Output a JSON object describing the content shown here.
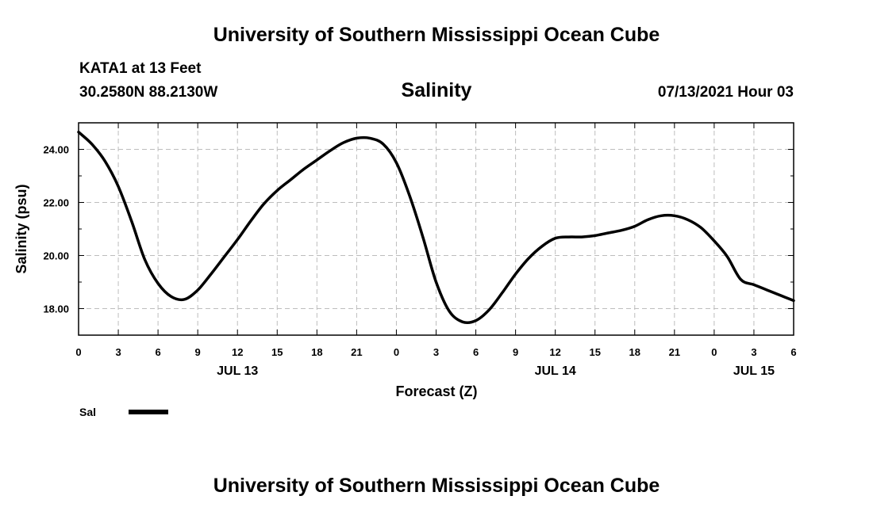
{
  "header": {
    "top_title": "University of Southern Mississippi Ocean Cube",
    "station": "KATA1 at 13 Feet",
    "coords": "30.2580N  88.2130W",
    "datetime": "07/13/2021 Hour 03",
    "bottom_title": "University of Southern Mississippi Ocean Cube"
  },
  "chart_data": {
    "type": "line",
    "title": "Salinity",
    "xlabel": "Forecast (Z)",
    "ylabel": "Salinity (psu)",
    "xlim": [
      0,
      54
    ],
    "ylim": [
      17,
      25
    ],
    "grid": true,
    "x_tick_labels": [
      "0",
      "3",
      "6",
      "9",
      "12",
      "15",
      "18",
      "21",
      "0",
      "3",
      "6",
      "9",
      "12",
      "15",
      "18",
      "21",
      "0",
      "3",
      "6"
    ],
    "y_ticks": [
      18,
      20,
      22,
      24
    ],
    "y_tick_labels": [
      "18.00",
      "20.00",
      "22.00",
      "24.00"
    ],
    "day_labels": [
      {
        "label": "JUL 13",
        "hour": 12
      },
      {
        "label": "JUL 14",
        "hour": 36
      },
      {
        "label": "JUL 15",
        "hour": 51
      }
    ],
    "legend": [
      {
        "name": "Sal",
        "color": "#000000"
      }
    ],
    "series": [
      {
        "name": "Sal",
        "color": "#000000",
        "x": [
          0,
          1,
          2,
          3,
          4,
          5,
          6,
          7,
          8,
          9,
          10,
          11,
          12,
          13,
          14,
          15,
          16,
          17,
          18,
          19,
          20,
          21,
          22,
          23,
          24,
          25,
          26,
          27,
          28,
          29,
          30,
          31,
          32,
          33,
          34,
          35,
          36,
          37,
          38,
          39,
          40,
          41,
          42,
          43,
          44,
          45,
          46,
          47,
          48,
          49,
          50,
          51,
          52,
          53,
          54
        ],
        "values": [
          24.65,
          24.2,
          23.55,
          22.6,
          21.3,
          19.85,
          18.95,
          18.45,
          18.35,
          18.7,
          19.3,
          19.95,
          20.6,
          21.3,
          21.95,
          22.45,
          22.85,
          23.25,
          23.6,
          23.95,
          24.25,
          24.42,
          24.42,
          24.2,
          23.5,
          22.25,
          20.7,
          19.0,
          17.9,
          17.5,
          17.55,
          17.95,
          18.6,
          19.3,
          19.9,
          20.35,
          20.65,
          20.7,
          20.7,
          20.75,
          20.85,
          20.95,
          21.1,
          21.35,
          21.5,
          21.5,
          21.35,
          21.05,
          20.55,
          19.95,
          19.1,
          18.9,
          18.7,
          18.5,
          18.3
        ]
      }
    ]
  }
}
